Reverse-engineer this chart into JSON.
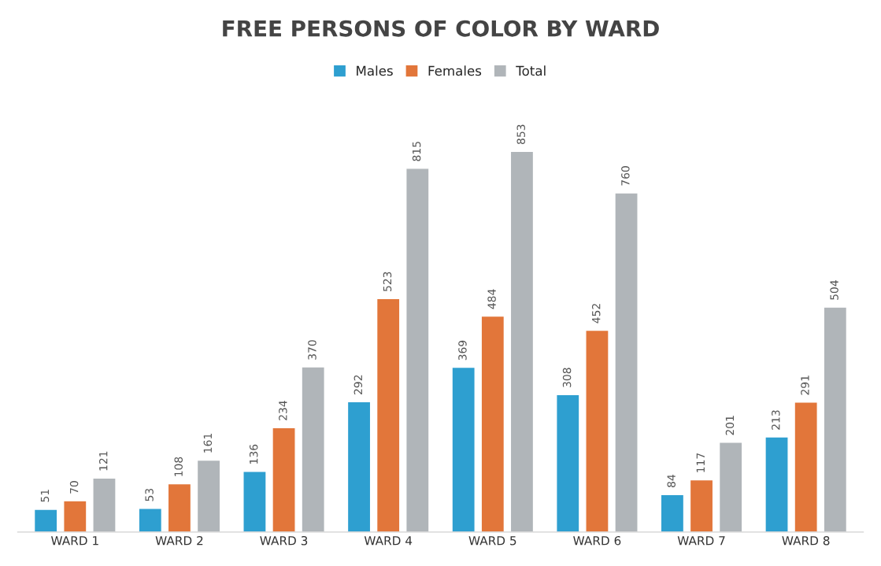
{
  "chart_data": {
    "type": "bar",
    "title": "FREE PERSONS OF COLOR BY WARD",
    "categories": [
      "WARD 1",
      "WARD 2",
      "WARD 3",
      "WARD 4",
      "WARD 5",
      "WARD 6",
      "WARD 7",
      "WARD 8"
    ],
    "series": [
      {
        "name": "Males",
        "color": "#2e9fd0",
        "values": [
          51,
          53,
          136,
          292,
          369,
          308,
          84,
          213
        ]
      },
      {
        "name": "Females",
        "color": "#e2763a",
        "values": [
          70,
          108,
          234,
          523,
          484,
          452,
          117,
          291
        ]
      },
      {
        "name": "Total",
        "color": "#b0b5b9",
        "values": [
          121,
          161,
          370,
          815,
          853,
          760,
          201,
          504
        ]
      }
    ],
    "data_labels": true,
    "legend": "top",
    "grid": false
  }
}
